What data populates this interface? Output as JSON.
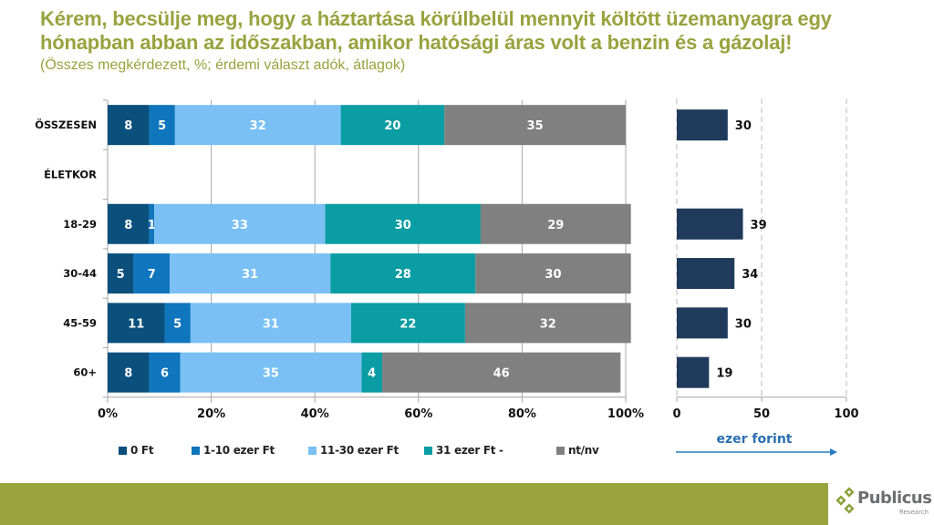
{
  "header": {
    "title": "Kérem, becsülje meg, hogy a háztartása körülbelül mennyit költött üzemanyagra egy hónapban abban az időszakban, amikor hatósági áras volt a benzin és a gázolaj!",
    "subtitle": "(Összes megkérdezett, %; érdemi választ adók, átlagok)"
  },
  "colors": {
    "title": "#97a33e",
    "footer": "#99a43f",
    "series": [
      "#0b4f7c",
      "#0f75bc",
      "#7ac0f4",
      "#0a9da3",
      "#808080"
    ],
    "avg_bar": "#1f3a5a",
    "arrow": "#2a7dc4"
  },
  "chart_data": [
    {
      "type": "bar",
      "orientation": "horizontal",
      "stacked": true,
      "categories": [
        "ÖSSZESEN",
        "ÉLETKOR",
        "18-29",
        "30-44",
        "45-59",
        "60+"
      ],
      "series": [
        {
          "name": "0 Ft",
          "values": [
            8,
            null,
            8,
            5,
            11,
            8
          ]
        },
        {
          "name": "1-10 ezer Ft",
          "values": [
            5,
            null,
            1,
            7,
            5,
            6
          ]
        },
        {
          "name": "11-30 ezer Ft",
          "values": [
            32,
            null,
            33,
            31,
            31,
            35
          ]
        },
        {
          "name": "31 ezer Ft -",
          "values": [
            20,
            null,
            30,
            28,
            22,
            4
          ]
        },
        {
          "name": "nt/nv",
          "values": [
            35,
            null,
            29,
            30,
            32,
            46
          ]
        }
      ],
      "xlim": [
        0,
        100
      ],
      "xticks": [
        "0%",
        "20%",
        "40%",
        "60%",
        "80%",
        "100%"
      ],
      "grid": true,
      "legend_position": "bottom"
    },
    {
      "type": "bar",
      "orientation": "horizontal",
      "categories": [
        "ÖSSZESEN",
        "ÉLETKOR",
        "18-29",
        "30-44",
        "45-59",
        "60+"
      ],
      "values": [
        30,
        null,
        39,
        34,
        30,
        19
      ],
      "xlim": [
        0,
        100
      ],
      "xticks": [
        "0",
        "50",
        "100"
      ],
      "xlabel": "ezer forint",
      "grid": true
    }
  ],
  "logo": {
    "name": "Publicus",
    "sub": "Research"
  }
}
